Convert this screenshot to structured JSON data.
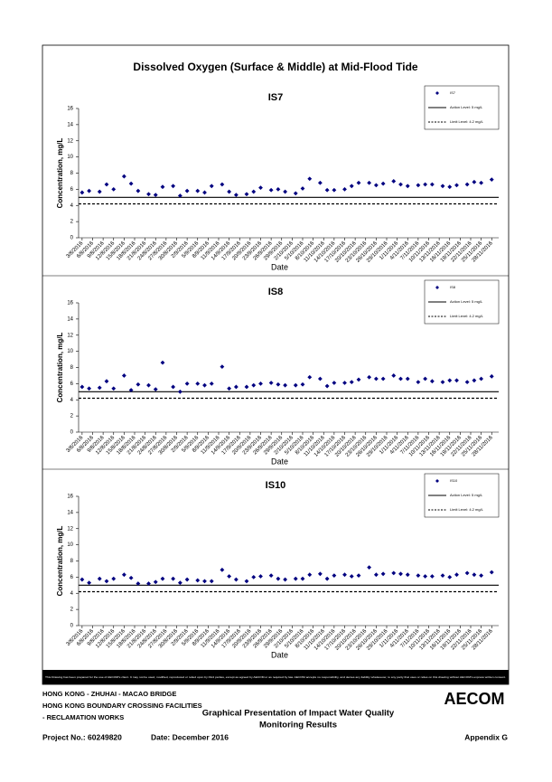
{
  "document": {
    "title": "Dissolved Oxygen (Surface & Middle) at Mid-Flood Tide",
    "disclaimer": "This Drawing has been prepared for the use of AECOM's client. It may not be used, modified, reproduced or relied upon by third parties, except as agreed by AECOM or as required by law. AECOM accepts no responsibility, and denies any liability whatsoever, to any party that uses or relies on this drawing without AECOM's express written consent.",
    "project_lines": [
      "HONG KONG - ZHUHAI - MACAO BRIDGE",
      "HONG KONG BOUNDARY CROSSING FACILITIES",
      "- RECLAMATION WORKS"
    ],
    "logo": "AECOM",
    "caption_lines": [
      "Graphical Presentation of Impact Water Quality",
      "Monitoring Results"
    ],
    "project_no": "Project No.: 60249820",
    "date": "Date: December 2016",
    "appendix": "Appendix G"
  },
  "chart_data": [
    {
      "type": "scatter",
      "title": "IS7",
      "xlabel": "Date",
      "ylabel": "Concentration, mg/L",
      "x": [
        "3/8/2016",
        "5/8/2016",
        "8/8/2016",
        "10/8/2016",
        "12/8/2016",
        "15/8/2016",
        "17/8/2016",
        "19/8/2016",
        "22/8/2016",
        "24/8/2016",
        "26/8/2016",
        "29/8/2016",
        "31/8/2016",
        "2/9/2016",
        "5/9/2016",
        "7/9/2016",
        "9/9/2016",
        "12/9/2016",
        "14/9/2016",
        "16/9/2016",
        "19/9/2016",
        "21/9/2016",
        "23/9/2016",
        "26/9/2016",
        "28/9/2016",
        "30/9/2016",
        "3/10/2016",
        "5/10/2016",
        "7/10/2016",
        "10/10/2016",
        "12/10/2016",
        "14/10/2016",
        "17/10/2016",
        "19/10/2016",
        "21/10/2016",
        "24/10/2016",
        "26/10/2016",
        "28/10/2016",
        "31/10/2016",
        "2/11/2016",
        "4/11/2016",
        "7/11/2016",
        "9/11/2016",
        "11/11/2016",
        "14/11/2016",
        "16/11/2016",
        "18/11/2016",
        "21/11/2016",
        "23/11/2016",
        "25/11/2016",
        "28/11/2016"
      ],
      "series": [
        {
          "name": "IS7",
          "color": "#000080",
          "values": [
            5.6,
            5.8,
            5.7,
            6.6,
            6.0,
            7.6,
            6.7,
            5.8,
            5.4,
            5.3,
            6.3,
            6.4,
            5.2,
            5.8,
            5.8,
            5.6,
            6.4,
            6.6,
            5.7,
            5.3,
            5.4,
            5.7,
            6.2,
            5.9,
            6.0,
            5.7,
            5.5,
            6.1,
            7.3,
            6.8,
            5.9,
            5.9,
            6.0,
            6.4,
            6.8,
            6.8,
            6.5,
            6.7,
            7.0,
            6.6,
            6.4,
            6.5,
            6.6,
            6.6,
            6.4,
            6.3,
            6.5,
            6.6,
            6.9,
            6.8,
            7.2
          ]
        }
      ],
      "reference_lines": [
        {
          "name": "Action Level: 5 mg/L",
          "value": 5,
          "dashed": false
        },
        {
          "name": "Limit Level: 4.2 mg/L",
          "value": 4.2,
          "dashed": true
        }
      ],
      "xlim": [
        "2/8/2016",
        "30/11/2016"
      ],
      "xticks": [
        "3/8/2016",
        "6/8/2016",
        "9/8/2016",
        "12/8/2016",
        "15/8/2016",
        "18/8/2016",
        "21/8/2016",
        "24/8/2016",
        "27/8/2016",
        "30/8/2016",
        "2/9/2016",
        "5/9/2016",
        "8/9/2016",
        "11/9/2016",
        "14/9/2016",
        "17/9/2016",
        "20/9/2016",
        "23/9/2016",
        "26/9/2016",
        "29/9/2016",
        "2/10/2016",
        "5/10/2016",
        "8/10/2016",
        "11/10/2016",
        "14/10/2016",
        "17/10/2016",
        "20/10/2016",
        "23/10/2016",
        "26/10/2016",
        "29/10/2016",
        "1/11/2016",
        "4/11/2016",
        "7/11/2016",
        "10/11/2016",
        "13/11/2016",
        "16/11/2016",
        "19/11/2016",
        "22/11/2016",
        "25/11/2016",
        "28/11/2016"
      ],
      "ylim": [
        0,
        16
      ],
      "yticks": [
        0,
        2,
        4,
        6,
        8,
        10,
        12,
        14,
        16
      ],
      "legend": "upper right"
    },
    {
      "type": "scatter",
      "title": "IS8",
      "xlabel": "Date",
      "ylabel": "Concentration, mg/L",
      "x": [
        "3/8/2016",
        "5/8/2016",
        "8/8/2016",
        "10/8/2016",
        "12/8/2016",
        "15/8/2016",
        "17/8/2016",
        "19/8/2016",
        "22/8/2016",
        "24/8/2016",
        "26/8/2016",
        "29/8/2016",
        "31/8/2016",
        "2/9/2016",
        "5/9/2016",
        "7/9/2016",
        "9/9/2016",
        "12/9/2016",
        "14/9/2016",
        "16/9/2016",
        "19/9/2016",
        "21/9/2016",
        "23/9/2016",
        "26/9/2016",
        "28/9/2016",
        "30/9/2016",
        "3/10/2016",
        "5/10/2016",
        "7/10/2016",
        "10/10/2016",
        "12/10/2016",
        "14/10/2016",
        "17/10/2016",
        "19/10/2016",
        "21/10/2016",
        "24/10/2016",
        "26/10/2016",
        "28/10/2016",
        "31/10/2016",
        "2/11/2016",
        "4/11/2016",
        "7/11/2016",
        "9/11/2016",
        "11/11/2016",
        "14/11/2016",
        "16/11/2016",
        "18/11/2016",
        "21/11/2016",
        "23/11/2016",
        "25/11/2016",
        "28/11/2016"
      ],
      "series": [
        {
          "name": "IS8",
          "color": "#000080",
          "values": [
            5.6,
            5.4,
            5.5,
            6.3,
            5.4,
            7.0,
            5.2,
            5.9,
            5.8,
            5.3,
            8.6,
            5.6,
            5.0,
            6.0,
            6.0,
            5.8,
            6.0,
            8.1,
            5.4,
            5.6,
            5.6,
            5.8,
            6.0,
            6.1,
            5.9,
            5.8,
            5.8,
            5.9,
            6.8,
            6.6,
            5.7,
            6.1,
            6.1,
            6.2,
            6.5,
            6.8,
            6.6,
            6.6,
            7.0,
            6.6,
            6.6,
            6.2,
            6.6,
            6.3,
            6.2,
            6.4,
            6.4,
            6.2,
            6.4,
            6.6,
            6.9
          ]
        }
      ],
      "reference_lines": [
        {
          "name": "Action Level: 5 mg/L",
          "value": 5,
          "dashed": false
        },
        {
          "name": "Limit Level: 4.2 mg/L",
          "value": 4.2,
          "dashed": true
        }
      ],
      "xlim": [
        "2/8/2016",
        "30/11/2016"
      ],
      "xticks": [
        "3/8/2016",
        "6/8/2016",
        "9/8/2016",
        "12/8/2016",
        "15/8/2016",
        "18/8/2016",
        "21/8/2016",
        "24/8/2016",
        "27/8/2016",
        "30/8/2016",
        "2/9/2016",
        "5/9/2016",
        "8/9/2016",
        "11/9/2016",
        "14/9/2016",
        "17/9/2016",
        "20/9/2016",
        "23/9/2016",
        "26/9/2016",
        "29/9/2016",
        "2/10/2016",
        "5/10/2016",
        "8/10/2016",
        "11/10/2016",
        "14/10/2016",
        "17/10/2016",
        "20/10/2016",
        "23/10/2016",
        "26/10/2016",
        "29/10/2016",
        "1/11/2016",
        "4/11/2016",
        "7/11/2016",
        "10/11/2016",
        "13/11/2016",
        "16/11/2016",
        "19/11/2016",
        "22/11/2016",
        "25/11/2016",
        "28/11/2016"
      ],
      "ylim": [
        0,
        16
      ],
      "yticks": [
        0,
        2,
        4,
        6,
        8,
        10,
        12,
        14,
        16
      ],
      "legend": "upper right"
    },
    {
      "type": "scatter",
      "title": "IS10",
      "xlabel": "Date",
      "ylabel": "Concentration, mg/L",
      "x": [
        "3/8/2016",
        "5/8/2016",
        "8/8/2016",
        "10/8/2016",
        "12/8/2016",
        "15/8/2016",
        "17/8/2016",
        "19/8/2016",
        "22/8/2016",
        "24/8/2016",
        "26/8/2016",
        "29/8/2016",
        "31/8/2016",
        "2/9/2016",
        "5/9/2016",
        "7/9/2016",
        "9/9/2016",
        "12/9/2016",
        "14/9/2016",
        "16/9/2016",
        "19/9/2016",
        "21/9/2016",
        "23/9/2016",
        "26/9/2016",
        "28/9/2016",
        "30/9/2016",
        "3/10/2016",
        "5/10/2016",
        "7/10/2016",
        "10/10/2016",
        "12/10/2016",
        "14/10/2016",
        "17/10/2016",
        "19/10/2016",
        "21/10/2016",
        "24/10/2016",
        "26/10/2016",
        "28/10/2016",
        "31/10/2016",
        "2/11/2016",
        "4/11/2016",
        "7/11/2016",
        "9/11/2016",
        "11/11/2016",
        "14/11/2016",
        "16/11/2016",
        "18/11/2016",
        "21/11/2016",
        "23/11/2016",
        "25/11/2016",
        "28/11/2016"
      ],
      "series": [
        {
          "name": "IS10",
          "color": "#000080",
          "values": [
            5.7,
            5.3,
            5.8,
            5.5,
            5.8,
            6.3,
            5.9,
            5.2,
            5.2,
            5.4,
            5.8,
            5.8,
            5.3,
            5.7,
            5.6,
            5.5,
            5.5,
            6.9,
            6.1,
            5.7,
            5.5,
            6.0,
            6.1,
            6.2,
            5.8,
            5.7,
            5.8,
            5.8,
            6.3,
            6.4,
            5.8,
            6.2,
            6.3,
            6.1,
            6.2,
            7.2,
            6.3,
            6.4,
            6.5,
            6.4,
            6.3,
            6.2,
            6.1,
            6.1,
            6.2,
            6.0,
            6.3,
            6.5,
            6.3,
            6.2,
            6.6
          ]
        }
      ],
      "reference_lines": [
        {
          "name": "Action Level: 5 mg/L",
          "value": 5,
          "dashed": false
        },
        {
          "name": "Limit Level: 4.2 mg/L",
          "value": 4.2,
          "dashed": true
        }
      ],
      "xlim": [
        "2/8/2016",
        "30/11/2016"
      ],
      "xticks": [
        "3/8/2016",
        "6/8/2016",
        "9/8/2016",
        "12/8/2016",
        "15/8/2016",
        "18/8/2016",
        "21/8/2016",
        "24/8/2016",
        "27/8/2016",
        "30/8/2016",
        "2/9/2016",
        "5/9/2016",
        "8/9/2016",
        "11/9/2016",
        "14/9/2016",
        "17/9/2016",
        "20/9/2016",
        "23/9/2016",
        "26/9/2016",
        "29/9/2016",
        "2/10/2016",
        "5/10/2016",
        "8/10/2016",
        "11/10/2016",
        "14/10/2016",
        "17/10/2016",
        "20/10/2016",
        "23/10/2016",
        "26/10/2016",
        "29/10/2016",
        "1/11/2016",
        "4/11/2016",
        "7/11/2016",
        "10/11/2016",
        "13/11/2016",
        "16/11/2016",
        "19/11/2016",
        "22/11/2016",
        "25/11/2016",
        "28/11/2016"
      ],
      "ylim": [
        0,
        16
      ],
      "yticks": [
        0,
        2,
        4,
        6,
        8,
        10,
        12,
        14,
        16
      ],
      "legend": "upper right"
    }
  ]
}
